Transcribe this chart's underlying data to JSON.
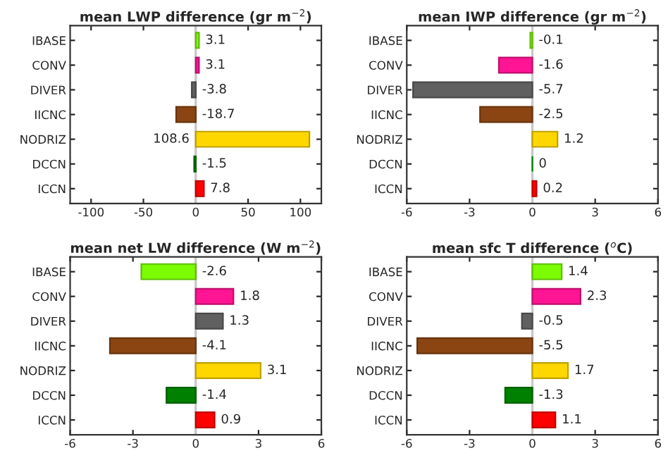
{
  "chart_data": [
    {
      "type": "bar",
      "orientation": "horizontal",
      "title": "mean LWP difference (gr m$^{−2}$)",
      "categories": [
        "IBASE",
        "CONV",
        "DIVER",
        "IICNC",
        "NODRIZ",
        "DCCN",
        "ICCN"
      ],
      "values": [
        3.1,
        3.1,
        -3.8,
        -18.7,
        108.6,
        -1.5,
        7.8
      ],
      "colors": [
        "#7cfc00",
        "#ff1493",
        "#606060",
        "#8b4513",
        "#ffd700",
        "#008000",
        "#ff0000"
      ],
      "xlim": [
        -120,
        120
      ],
      "xticks": [
        -100,
        -50,
        0,
        50,
        100
      ],
      "ref_lines": [
        {
          "axis": "x",
          "value": 0,
          "color": "#c8c8c8"
        }
      ],
      "data_labels": true,
      "grid": false,
      "legend": false
    },
    {
      "type": "bar",
      "orientation": "horizontal",
      "title": "mean IWP difference (gr m$^{−2}$)",
      "categories": [
        "IBASE",
        "CONV",
        "DIVER",
        "IICNC",
        "NODRIZ",
        "DCCN",
        "ICCN"
      ],
      "values": [
        -0.1,
        -1.6,
        -5.7,
        -2.5,
        1.2,
        0,
        0.2
      ],
      "colors": [
        "#7cfc00",
        "#ff1493",
        "#606060",
        "#8b4513",
        "#ffd700",
        "#008000",
        "#ff0000"
      ],
      "xlim": [
        -6,
        6
      ],
      "xticks": [
        -6,
        -3,
        0,
        3,
        6
      ],
      "ref_lines": [
        {
          "axis": "x",
          "value": 0,
          "color": "#c8c8c8"
        }
      ],
      "data_labels": true,
      "grid": false,
      "legend": false
    },
    {
      "type": "bar",
      "orientation": "horizontal",
      "title": "mean net LW difference (W m$^{−2}$)",
      "categories": [
        "IBASE",
        "CONV",
        "DIVER",
        "IICNC",
        "NODRIZ",
        "DCCN",
        "ICCN"
      ],
      "values": [
        -2.6,
        1.8,
        1.3,
        -4.1,
        3.1,
        -1.4,
        0.9
      ],
      "colors": [
        "#7cfc00",
        "#ff1493",
        "#606060",
        "#8b4513",
        "#ffd700",
        "#008000",
        "#ff0000"
      ],
      "xlim": [
        -6,
        6
      ],
      "xticks": [
        -6,
        -3,
        0,
        3,
        6
      ],
      "ref_lines": [
        {
          "axis": "x",
          "value": 0,
          "color": "#c8c8c8"
        }
      ],
      "data_labels": true,
      "grid": false,
      "legend": false
    },
    {
      "type": "bar",
      "orientation": "horizontal",
      "title": "mean sfc T difference ($^{o}$C)",
      "categories": [
        "IBASE",
        "CONV",
        "DIVER",
        "IICNC",
        "NODRIZ",
        "DCCN",
        "ICCN"
      ],
      "values": [
        1.4,
        2.3,
        -0.5,
        -5.5,
        1.7,
        -1.3,
        1.1
      ],
      "colors": [
        "#7cfc00",
        "#ff1493",
        "#606060",
        "#8b4513",
        "#ffd700",
        "#008000",
        "#ff0000"
      ],
      "xlim": [
        -6,
        6
      ],
      "xticks": [
        -6,
        -3,
        0,
        3,
        6
      ],
      "ref_lines": [
        {
          "axis": "x",
          "value": 0,
          "color": "#c8c8c8"
        }
      ],
      "data_labels": true,
      "grid": false,
      "legend": false
    }
  ]
}
